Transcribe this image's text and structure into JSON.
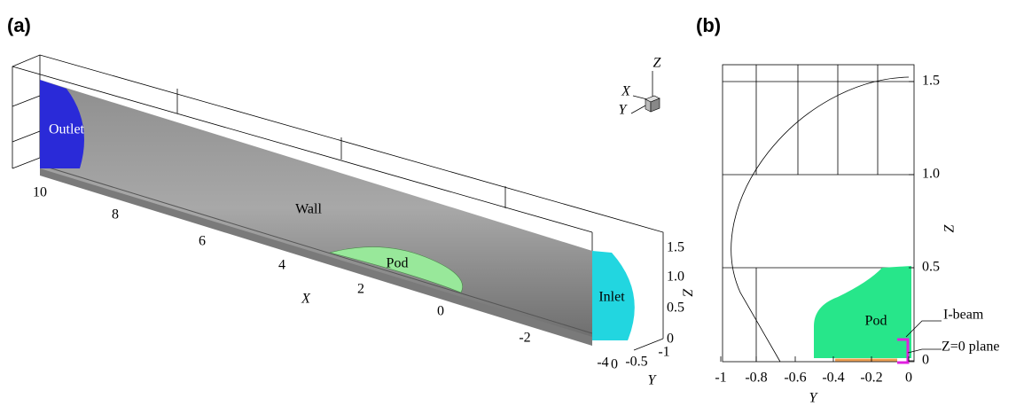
{
  "panel_a": {
    "label": "(a)",
    "regions": {
      "outlet": "Outlet",
      "wall": "Wall",
      "pod": "Pod",
      "inlet": "Inlet"
    },
    "x_axis": {
      "title": "X",
      "ticks": [
        "10",
        "8",
        "6",
        "4",
        "2",
        "0",
        "-2",
        "-4"
      ]
    },
    "y_axis": {
      "title": "Y",
      "ticks": [
        "0",
        "-0.5",
        "-1"
      ]
    },
    "z_axis": {
      "title": "Z",
      "ticks": [
        "1.5",
        "1.0",
        "0.5",
        "0"
      ]
    },
    "triad": {
      "z": "Z",
      "x": "X",
      "y": "Y"
    }
  },
  "panel_b": {
    "label": "(b)",
    "y_axis": {
      "title": "Y",
      "ticks": [
        "-1",
        "-0.8",
        "-0.6",
        "-0.4",
        "-0.2",
        "0"
      ]
    },
    "z_axis": {
      "title": "Z",
      "ticks": [
        "1.5",
        "1.0",
        "0.5",
        "0"
      ]
    },
    "annotations": {
      "pod": "Pod",
      "i_beam": "I-beam",
      "plane": "Z=0 plane"
    }
  }
}
